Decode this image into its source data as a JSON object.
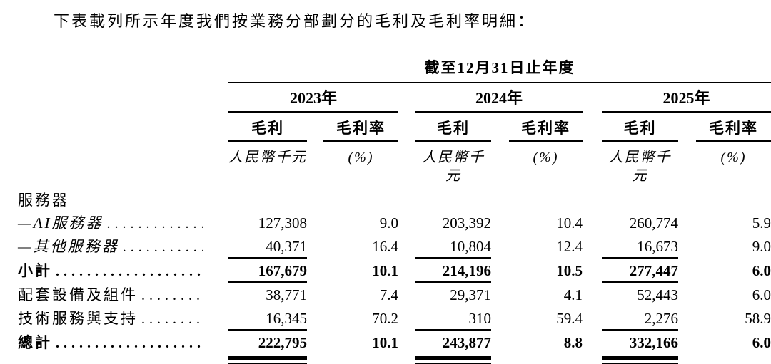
{
  "page": {
    "title": "下表載列所示年度我們按業務分部劃分的毛利及毛利率明細："
  },
  "table": {
    "period_header": "截至12月31日止年度",
    "year_groups": [
      {
        "year": "2023年"
      },
      {
        "year": "2024年"
      },
      {
        "year": "2025年"
      }
    ],
    "col_headers": {
      "gross_profit": "毛利",
      "gross_margin": "毛利率"
    },
    "units": {
      "rmb": "人民幣千元",
      "pct": "(%)"
    },
    "rows": [
      {
        "label": "服務器",
        "values": [
          "",
          "",
          "",
          "",
          "",
          ""
        ]
      },
      {
        "label": "—AI服務器",
        "values": [
          "127,308",
          "9.0",
          "203,392",
          "10.4",
          "260,774",
          "5.9"
        ]
      },
      {
        "label": "—其他服務器",
        "values": [
          "40,371",
          "16.4",
          "10,804",
          "12.4",
          "16,673",
          "9.0"
        ]
      },
      {
        "label": "小計",
        "values": [
          "167,679",
          "10.1",
          "214,196",
          "10.5",
          "277,447",
          "6.0"
        ]
      },
      {
        "label": "配套設備及組件",
        "values": [
          "38,771",
          "7.4",
          "29,371",
          "4.1",
          "52,443",
          "6.0"
        ]
      },
      {
        "label": "技術服務與支持",
        "values": [
          "16,345",
          "70.2",
          "310",
          "59.4",
          "2,276",
          "58.9"
        ]
      },
      {
        "label": "總計",
        "values": [
          "222,795",
          "10.1",
          "243,877",
          "8.8",
          "332,166",
          "6.0"
        ]
      }
    ],
    "colors": {
      "text": "#000000",
      "rule": "#000000",
      "background": "#ffffff"
    }
  }
}
